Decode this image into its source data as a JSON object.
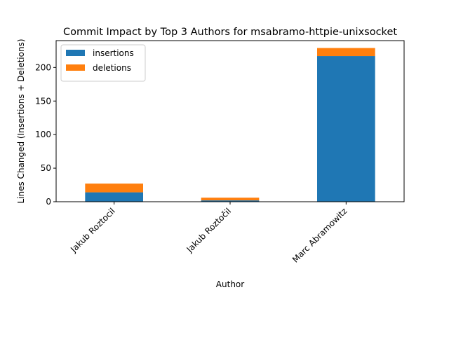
{
  "chart_data": {
    "type": "bar",
    "stacked": true,
    "title": "Commit Impact by Top 3 Authors for msabramo-httpie-unixsocket",
    "xlabel": "Author",
    "ylabel": "Lines Changed (Insertions + Deletions)",
    "categories": [
      "Jakub Roztocil",
      "Jakub Roztočil",
      "Marc Abramowitz"
    ],
    "series": [
      {
        "name": "insertions",
        "color": "#1f77b4",
        "values": [
          14,
          2,
          217
        ]
      },
      {
        "name": "deletions",
        "color": "#ff7f0e",
        "values": [
          13,
          4,
          12
        ]
      }
    ],
    "ylim": [
      0,
      240
    ],
    "yticks": [
      0,
      50,
      100,
      150,
      200
    ],
    "grid": false,
    "legend_position": "top-left"
  }
}
